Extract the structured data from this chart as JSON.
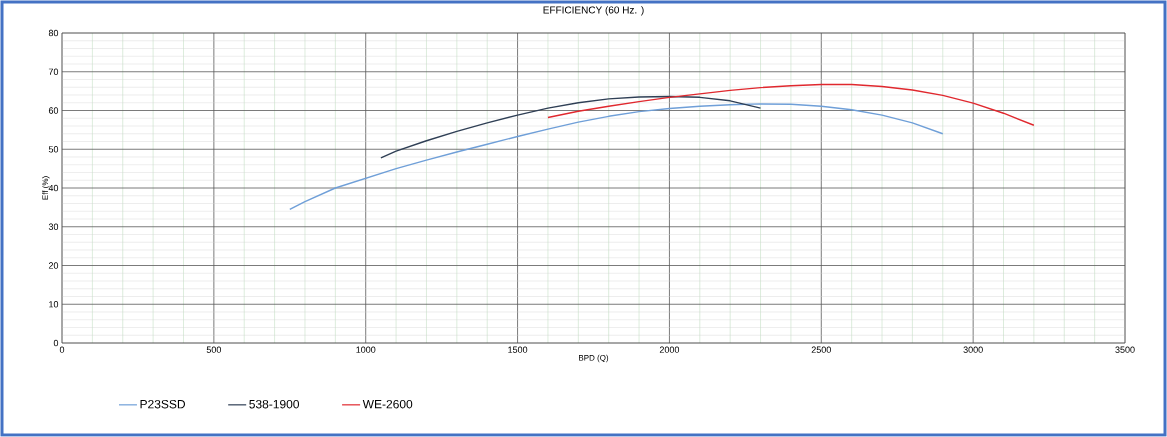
{
  "chart_data": {
    "type": "line",
    "title": "EFFICIENCY (60 Hz. )",
    "xlabel": "BPD (Q)",
    "ylabel": "Eff (%)",
    "xlim": [
      0,
      3500
    ],
    "xticks": [
      0,
      500,
      1000,
      1500,
      2000,
      2500,
      3000,
      3500
    ],
    "ylim": [
      0,
      80
    ],
    "yticks": [
      0,
      10,
      20,
      30,
      40,
      50,
      60,
      70,
      80
    ],
    "grid": true,
    "legend": "bottom",
    "marker": "none",
    "line_style": "solid",
    "series": [
      {
        "name": "P23SSD",
        "color": "#6f9fd8",
        "x": [
          750,
          800,
          900,
          1000,
          1100,
          1200,
          1300,
          1400,
          1500,
          1600,
          1700,
          1800,
          1900,
          2000,
          2100,
          2200,
          2300,
          2400,
          2500,
          2600,
          2700,
          2800,
          2900
        ],
        "values": [
          34.5,
          36.5,
          40,
          42.5,
          45,
          47.2,
          49.3,
          51.3,
          53.3,
          55.2,
          57,
          58.5,
          59.7,
          60.5,
          61.1,
          61.5,
          61.7,
          61.6,
          61.1,
          60.2,
          58.8,
          56.8,
          54
        ]
      },
      {
        "name": "538-1900",
        "color": "#2f3f55",
        "x": [
          1050,
          1100,
          1200,
          1300,
          1400,
          1500,
          1600,
          1700,
          1800,
          1900,
          2000,
          2100,
          2200,
          2300
        ],
        "values": [
          47.8,
          49.5,
          52.2,
          54.6,
          56.8,
          58.8,
          60.6,
          62,
          63,
          63.5,
          63.6,
          63.4,
          62.5,
          60.6
        ]
      },
      {
        "name": "WE-2600",
        "color": "#e0282e",
        "x": [
          1600,
          1700,
          1800,
          1900,
          2000,
          2100,
          2200,
          2300,
          2400,
          2500,
          2600,
          2700,
          2800,
          2900,
          3000,
          3100,
          3200
        ],
        "values": [
          58.2,
          59.8,
          61.1,
          62.3,
          63.4,
          64.3,
          65.2,
          65.9,
          66.4,
          66.7,
          66.7,
          66.2,
          65.3,
          63.9,
          61.9,
          59.3,
          56.2
        ]
      }
    ]
  }
}
